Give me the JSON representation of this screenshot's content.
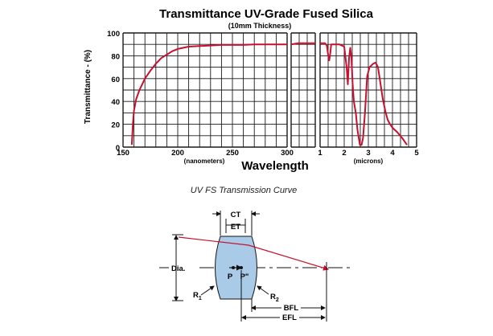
{
  "chart_data": {
    "type": "line",
    "title": "Transmittance UV-Grade Fused Silica",
    "subtitle": "(10mm Thickness)",
    "ylabel": "Transmittance - (%)",
    "xlabel": "Wavelength",
    "ylim": [
      0,
      100
    ],
    "yticks": [
      "0",
      "20",
      "40",
      "60",
      "80",
      "100"
    ],
    "grid": true,
    "line_color": "#c8102e",
    "panels": [
      {
        "unit_label": "(nanometers)",
        "xlim": [
          150,
          300
        ],
        "xticks": [
          "150",
          "200",
          "250",
          "300"
        ],
        "x": [
          158,
          159,
          160,
          162,
          165,
          170,
          175,
          180,
          185,
          190,
          195,
          200,
          210,
          220,
          230,
          240,
          250,
          260,
          270,
          280,
          290,
          300
        ],
        "y": [
          2,
          20,
          32,
          42,
          50,
          60,
          67,
          73,
          78,
          81,
          84,
          86,
          88,
          88.5,
          89,
          89.5,
          89.5,
          89.5,
          90,
          90,
          90,
          90
        ]
      },
      {
        "unit_label": "",
        "xlim": [
          300,
          1000
        ],
        "xticks": [],
        "x": [
          300,
          400,
          500,
          600,
          700,
          800,
          900,
          1000
        ],
        "y": [
          90,
          90.5,
          91,
          91,
          91,
          91,
          91,
          91
        ]
      },
      {
        "unit_label": "(microns)",
        "xlim": [
          1,
          5
        ],
        "xticks": [
          "1",
          "2",
          "3",
          "4",
          "5"
        ],
        "x": [
          1.0,
          1.2,
          1.28,
          1.34,
          1.38,
          1.42,
          1.46,
          1.6,
          1.8,
          2.0,
          2.1,
          2.15,
          2.2,
          2.25,
          2.3,
          2.35,
          2.4,
          2.48,
          2.55,
          2.65,
          2.72,
          2.78,
          2.86,
          2.95,
          3.05,
          3.2,
          3.3,
          3.4,
          3.5,
          3.6,
          3.7,
          3.8,
          3.9,
          4.0,
          4.2,
          4.4,
          4.6
        ],
        "y": [
          91,
          91,
          89,
          80,
          76,
          82,
          90,
          90,
          90,
          88,
          70,
          55,
          78,
          87,
          78,
          55,
          40,
          30,
          15,
          2,
          2,
          8,
          30,
          62,
          70,
          73,
          74,
          70,
          56,
          42,
          32,
          24,
          20,
          17,
          13,
          8,
          2
        ]
      }
    ]
  },
  "caption": "UV FS Transmission Curve",
  "diagram": {
    "labels": {
      "ct": "CT",
      "et": "ET",
      "dia": "Dia.",
      "p": "P",
      "p_prime": "P\"",
      "r1": "R",
      "r1_sub": "1",
      "r2": "R",
      "r2_sub": "2",
      "bfl": "BFL",
      "efl": "EFL"
    },
    "lens_color": "#a9cbe8",
    "ray_color": "#c8102e"
  }
}
